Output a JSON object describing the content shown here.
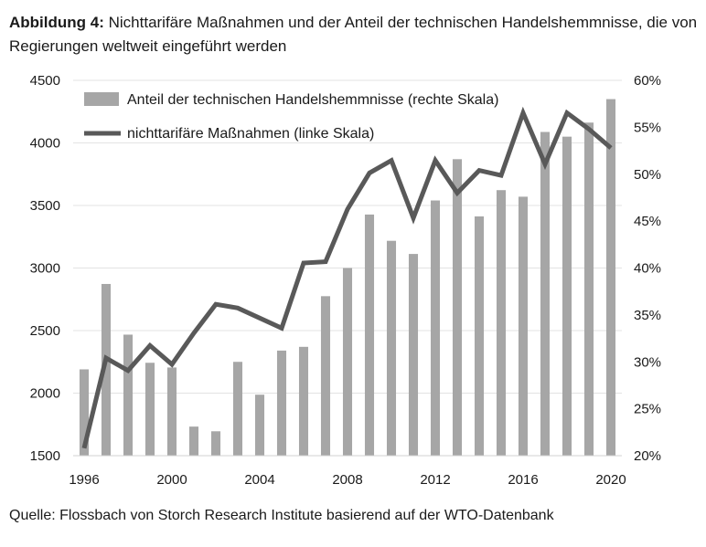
{
  "figure": {
    "label": "Abbildung 4:",
    "title": "Nichttarifäre Maßnahmen und der Anteil der technischen Handelshemmnisse, die von Regierungen weltweit eingeführt werden",
    "source": "Quelle: Flossbach von Storch Research Institute basierend auf der WTO-Datenbank"
  },
  "chart_data": {
    "type": "bar+line",
    "x": [
      1996,
      1997,
      1998,
      1999,
      2000,
      2001,
      2002,
      2003,
      2004,
      2005,
      2006,
      2007,
      2008,
      2009,
      2010,
      2011,
      2012,
      2013,
      2014,
      2015,
      2016,
      2017,
      2018,
      2019,
      2020
    ],
    "x_ticks": [
      "1996",
      "2000",
      "2004",
      "2008",
      "2012",
      "2016",
      "2020"
    ],
    "y_left_ticks": [
      "1500",
      "2000",
      "2500",
      "3000",
      "3500",
      "4000",
      "4500"
    ],
    "y_left_range": [
      1500,
      4500
    ],
    "y_right_ticks": [
      "20%",
      "25%",
      "30%",
      "35%",
      "40%",
      "45%",
      "50%",
      "55%",
      "60%"
    ],
    "y_right_range": [
      20,
      60
    ],
    "series": [
      {
        "name": "Anteil der technischen Handelshemmnisse (rechte Skala)",
        "kind": "bar",
        "axis": "right",
        "color": "#a6a6a6",
        "values": [
          29.2,
          38.3,
          32.9,
          29.9,
          29.4,
          23.1,
          22.6,
          30.0,
          26.5,
          31.2,
          31.6,
          37.0,
          40.0,
          45.7,
          42.9,
          41.5,
          47.2,
          51.6,
          45.5,
          48.3,
          47.6,
          54.5,
          54.0,
          55.5,
          58.0
        ]
      },
      {
        "name": "nichttarifäre Maßnahmen (linke Skala)",
        "kind": "line",
        "axis": "left",
        "color": "#595959",
        "values": [
          1560,
          2280,
          2180,
          2380,
          2230,
          2480,
          2710,
          2680,
          2600,
          2520,
          3040,
          3050,
          3470,
          3760,
          3860,
          3400,
          3860,
          3600,
          3780,
          3740,
          4240,
          3830,
          4240,
          4110,
          3960
        ]
      }
    ],
    "grid": "horizontal",
    "legend": "top-left"
  }
}
